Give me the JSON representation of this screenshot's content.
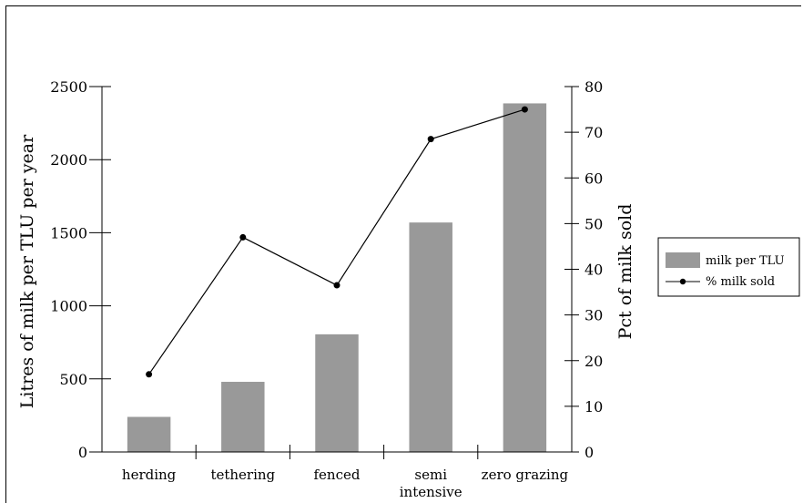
{
  "chart_data": {
    "type": "bar",
    "title": "",
    "categories": [
      "herding",
      "tethering",
      "fenced",
      "semi intensive",
      "zero grazing"
    ],
    "category_lines": [
      [
        "herding"
      ],
      [
        "tethering"
      ],
      [
        "fenced"
      ],
      [
        "semi",
        "intensive"
      ],
      [
        "zero grazing"
      ]
    ],
    "series": [
      {
        "name": "milk per TLU",
        "type": "bar",
        "axis": "left",
        "values": [
          240,
          480,
          805,
          1570,
          2385
        ],
        "color": "#999999"
      },
      {
        "name": "% milk sold",
        "type": "line",
        "axis": "right",
        "values": [
          17,
          47,
          36.5,
          68.5,
          75
        ],
        "color": "#000000"
      }
    ],
    "ylabel_left": "Litres of milk per TLU per year",
    "ylabel_right": "Pct of milk sold",
    "ylim_left": [
      0,
      2500
    ],
    "yticks_left": [
      0,
      500,
      1000,
      1500,
      2000,
      2500
    ],
    "ylim_right": [
      0,
      80
    ],
    "yticks_right": [
      0,
      10,
      20,
      30,
      40,
      50,
      60,
      70,
      80
    ],
    "grid": false,
    "legend_position": "right"
  }
}
